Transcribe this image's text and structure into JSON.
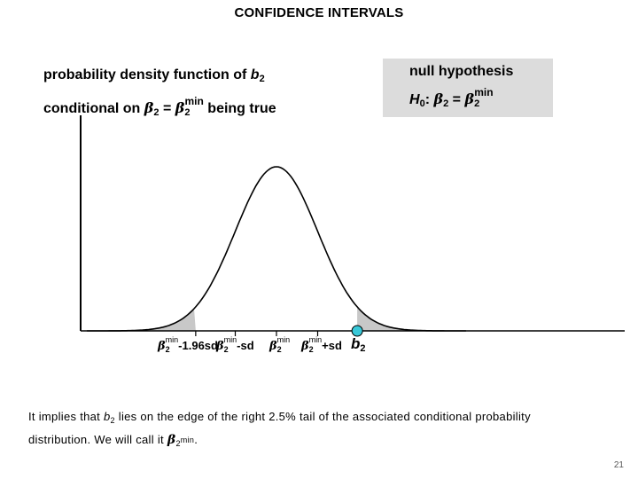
{
  "title": "CONFIDENCE INTERVALS",
  "pdf_label": {
    "line1_text": "probability density function of ",
    "line1_var": "b",
    "line1_sub": "2",
    "line2_text": "conditional on ",
    "line2_greek": "β",
    "line2_sub": "2",
    "line2_eq": " = ",
    "line2_greek_b": "β",
    "line2_sub_b": "2",
    "line2_sup_b": "min",
    "line2_tail": " being true"
  },
  "null_hypothesis": {
    "title": "null hypothesis",
    "h": "H",
    "h_sub": "0",
    "colon": ": ",
    "greek": "β",
    "greek_sub": "2",
    "eq": " = ",
    "greek_b": "β",
    "greek_b_sub": "2",
    "greek_b_sup": "min"
  },
  "tick_labels": {
    "t1": {
      "greek": "β",
      "sub": "2",
      "sup": "min",
      "suffix": "-1.96sd"
    },
    "t2": {
      "greek": "β",
      "sub": "2",
      "sup": "min",
      "suffix": "-sd"
    },
    "t3": {
      "greek": "β",
      "sub": "2",
      "sup": "min",
      "suffix": ""
    },
    "t4": {
      "greek": "β",
      "sub": "2",
      "sup": "min",
      "suffix": "+sd"
    }
  },
  "axis_label": {
    "var": "b",
    "sub": "2"
  },
  "caption": {
    "part1": "It implies that ",
    "var": "b",
    "var_sub": "2",
    "part2": " lies on the edge of the right 2.5% tail of the associated conditional probability distribution. We will call it ",
    "greek": "β",
    "greek_sub": "2",
    "greek_sup": "min",
    "part3": "."
  },
  "slide_number": "21",
  "colors": {
    "curve": "#000000",
    "tail_shading": "#c8c8c8",
    "null_box": "#dcdcdc",
    "marker": "#39c8d8",
    "slide_number": "#555555"
  },
  "chart_data": {
    "type": "area",
    "distribution": "normal",
    "mean": 0,
    "sd": 1,
    "shaded_tails_beyond_sd": 1.96,
    "ticks_in_sd": [
      -1.96,
      -1,
      0,
      1
    ],
    "marker_at_sd": 1.96
  }
}
